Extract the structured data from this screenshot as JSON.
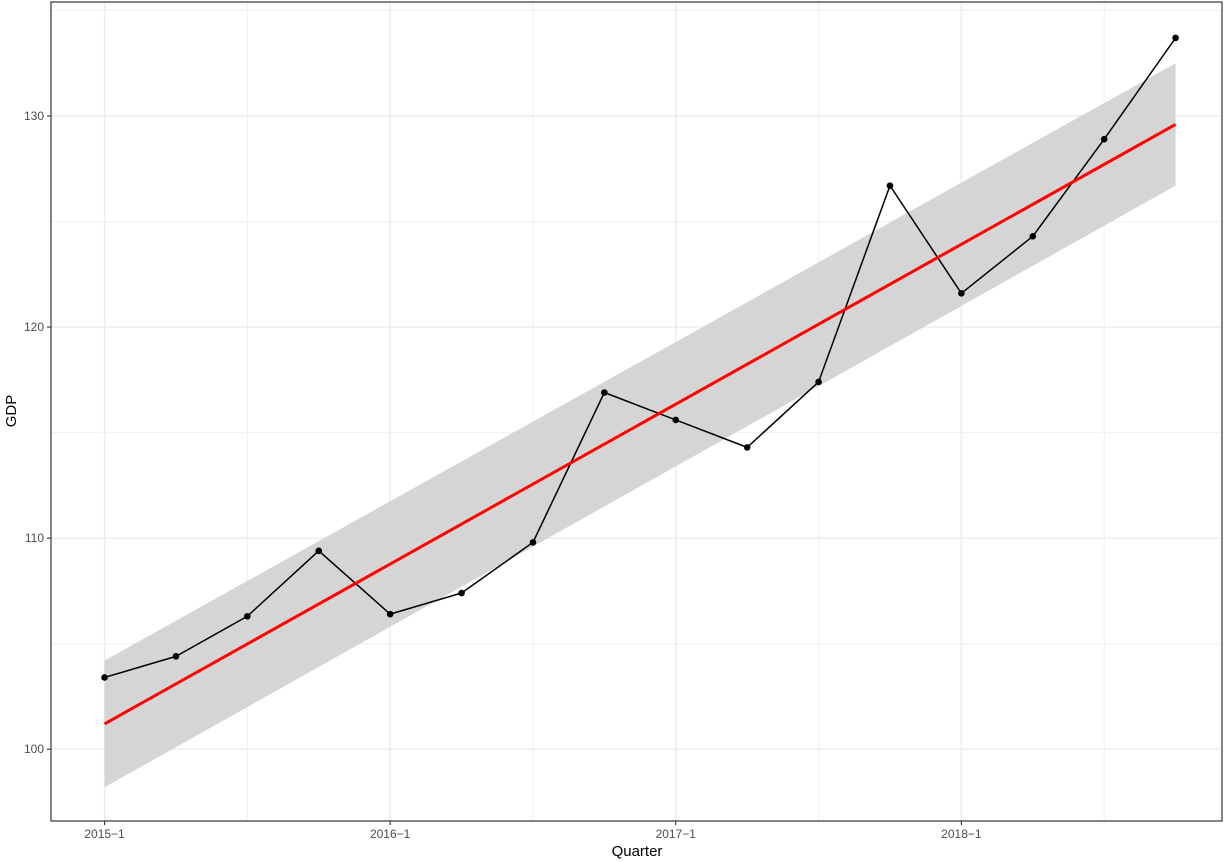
{
  "chart_data": {
    "type": "line",
    "title": "",
    "xlabel": "Quarter",
    "ylabel": "GDP",
    "x_ticks": [
      "2015−1",
      "2016−1",
      "2017−1",
      "2018−1"
    ],
    "x_tick_positions": [
      0,
      4,
      8,
      12
    ],
    "y_ticks": [
      "100",
      "110",
      "120",
      "130"
    ],
    "y_tick_values": [
      100,
      110,
      120,
      130
    ],
    "ylim": [
      96.6,
      135.4
    ],
    "xlim": [
      -0.75,
      15.65
    ],
    "grid": true,
    "legend": "none",
    "series": [
      {
        "type": "line+points",
        "color": "#000000",
        "x": [
          0,
          1,
          2,
          3,
          4,
          5,
          6,
          7,
          8,
          9,
          10,
          11,
          12,
          13,
          14,
          15
        ],
        "values": [
          103.4,
          104.4,
          106.3,
          109.4,
          106.4,
          107.4,
          109.8,
          116.9,
          115.6,
          114.3,
          117.4,
          126.7,
          121.6,
          124.3,
          128.9,
          133.7
        ]
      },
      {
        "type": "regression",
        "color": "#ff0000",
        "x": [
          0,
          15
        ],
        "values": [
          101.2,
          129.6
        ]
      }
    ],
    "confidence_band": {
      "color": "#d3d3d3",
      "x": [
        0,
        15
      ],
      "lower": [
        98.2,
        126.7
      ],
      "upper": [
        104.2,
        132.5
      ]
    }
  }
}
